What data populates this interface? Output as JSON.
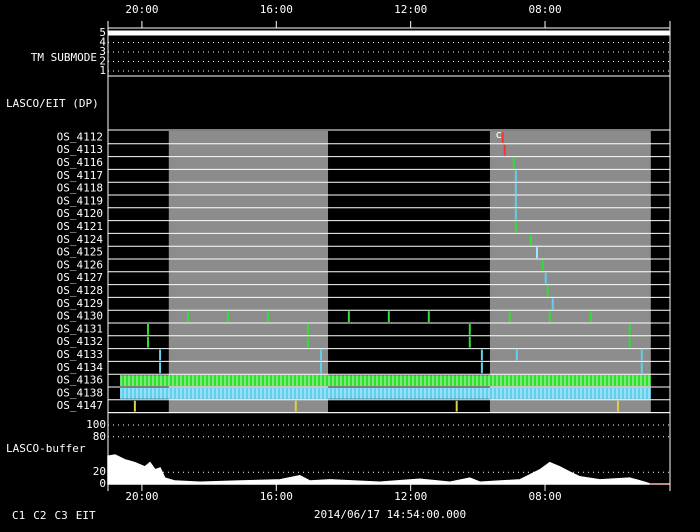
{
  "chart_data": {
    "type": "timeline",
    "xlim": [
      21.01,
      4.28
    ],
    "xticks": [
      {
        "value": 20,
        "label": "20:00"
      },
      {
        "value": 16,
        "label": "16:00"
      },
      {
        "value": 12,
        "label": "12:00"
      },
      {
        "value": 8,
        "label": "08:00"
      }
    ],
    "shaded": [
      [
        19.2,
        14.46
      ],
      [
        9.64,
        4.85
      ]
    ],
    "tm_submode": {
      "label": "TM SUBMODE",
      "ylim": [
        1,
        5
      ],
      "yticks": [
        1,
        2,
        3,
        4,
        5
      ],
      "x": [
        21.01,
        4.28
      ],
      "values": [
        5,
        5
      ],
      "color": "#ffffff"
    },
    "lasco_eit_label": "LASCO/EIT (DP)",
    "annotation": {
      "text": "c",
      "row": 0,
      "x": 9.3
    },
    "rows": [
      {
        "name": "OS_4112",
        "events": [
          {
            "x": 9.26,
            "color": "#ff3030"
          }
        ]
      },
      {
        "name": "OS_4113",
        "events": [
          {
            "x": 9.2,
            "color": "#ff3030"
          }
        ]
      },
      {
        "name": "OS_4116",
        "events": [
          {
            "x": 8.93,
            "color": "#30e030"
          }
        ]
      },
      {
        "name": "OS_4117",
        "events": [
          {
            "x": 8.87,
            "color": "#60d0f0"
          }
        ]
      },
      {
        "name": "OS_4118",
        "events": [
          {
            "x": 8.87,
            "color": "#60d0f0"
          }
        ]
      },
      {
        "name": "OS_4119",
        "events": [
          {
            "x": 8.87,
            "color": "#60d0f0"
          }
        ]
      },
      {
        "name": "OS_4120",
        "events": [
          {
            "x": 8.87,
            "color": "#60d0f0"
          }
        ]
      },
      {
        "name": "OS_4121",
        "events": [
          {
            "x": 8.87,
            "color": "#30e030"
          }
        ]
      },
      {
        "name": "OS_4124",
        "events": [
          {
            "x": 8.42,
            "color": "#30e030"
          }
        ]
      },
      {
        "name": "OS_4125",
        "events": [
          {
            "x": 8.24,
            "color": "#a0e8ff"
          }
        ]
      },
      {
        "name": "OS_4126",
        "events": [
          {
            "x": 8.07,
            "color": "#30e030"
          }
        ]
      },
      {
        "name": "OS_4127",
        "events": [
          {
            "x": 7.98,
            "color": "#60d0f0"
          }
        ]
      },
      {
        "name": "OS_4128",
        "events": [
          {
            "x": 7.92,
            "color": "#30e030"
          }
        ]
      },
      {
        "name": "OS_4129",
        "events": [
          {
            "x": 7.77,
            "color": "#60d0f0"
          }
        ]
      },
      {
        "name": "OS_4130",
        "events": [
          {
            "x": 18.63,
            "color": "#30e030"
          },
          {
            "x": 17.44,
            "color": "#30e030"
          },
          {
            "x": 16.25,
            "color": "#30e030"
          },
          {
            "x": 13.84,
            "color": "#30e030"
          },
          {
            "x": 12.65,
            "color": "#30e030"
          },
          {
            "x": 11.46,
            "color": "#30e030"
          },
          {
            "x": 9.05,
            "color": "#30e030"
          },
          {
            "x": 7.86,
            "color": "#30e030"
          },
          {
            "x": 6.64,
            "color": "#30e030"
          }
        ]
      },
      {
        "name": "OS_4131",
        "events": [
          {
            "x": 19.82,
            "color": "#30e030"
          },
          {
            "x": 15.06,
            "color": "#30e030"
          },
          {
            "x": 10.24,
            "color": "#30e030"
          },
          {
            "x": 5.48,
            "color": "#30e030"
          }
        ]
      },
      {
        "name": "OS_4132",
        "events": [
          {
            "x": 19.82,
            "color": "#30e030"
          },
          {
            "x": 15.06,
            "color": "#30e030"
          },
          {
            "x": 10.24,
            "color": "#30e030"
          },
          {
            "x": 5.48,
            "color": "#30e030"
          }
        ]
      },
      {
        "name": "OS_4133",
        "events": [
          {
            "x": 19.46,
            "color": "#60d0f0"
          },
          {
            "x": 14.67,
            "color": "#60d0f0"
          },
          {
            "x": 9.88,
            "color": "#60d0f0"
          },
          {
            "x": 8.84,
            "color": "#60d0f0"
          },
          {
            "x": 5.12,
            "color": "#60d0f0"
          }
        ]
      },
      {
        "name": "OS_4134",
        "events": [
          {
            "x": 19.46,
            "color": "#60d0f0"
          },
          {
            "x": 14.67,
            "color": "#60d0f0"
          },
          {
            "x": 9.88,
            "color": "#60d0f0"
          },
          {
            "x": 5.12,
            "color": "#60d0f0"
          }
        ]
      },
      {
        "name": "OS_4136",
        "bands": [
          {
            "start": 20.65,
            "end": 4.85,
            "color": "#30e030"
          }
        ]
      },
      {
        "name": "OS_4138",
        "bands": [
          {
            "start": 20.65,
            "end": 4.85,
            "color": "#60d0f0"
          }
        ]
      },
      {
        "name": "OS_4147",
        "events": [
          {
            "x": 20.21,
            "color": "#e0d040"
          },
          {
            "x": 15.42,
            "color": "#e0d040"
          },
          {
            "x": 10.63,
            "color": "#e0d040"
          },
          {
            "x": 5.83,
            "color": "#e0d040"
          }
        ]
      }
    ],
    "buffer": {
      "label": "LASCO-buffer",
      "ylim": [
        0,
        100
      ],
      "yticks": [
        0,
        20,
        80,
        100
      ],
      "series": [
        {
          "color": "#ffffff",
          "x": [
            21.01,
            20.8,
            20.51,
            20.21,
            19.91,
            19.76,
            19.61,
            19.46,
            19.32,
            19.02,
            18.27,
            17.08,
            15.89,
            15.3,
            15.0,
            14.4,
            12.92,
            11.73,
            10.83,
            10.24,
            9.94,
            8.75,
            8.15,
            7.86,
            7.56,
            7.26,
            6.96,
            6.37,
            5.48,
            5.04,
            4.88
          ],
          "values": [
            47,
            49,
            41,
            36,
            29,
            36,
            24,
            27,
            10,
            5,
            3,
            5,
            7,
            14,
            5,
            7,
            3,
            8,
            3,
            10,
            3,
            7,
            24,
            36,
            29,
            20,
            12,
            7,
            10,
            3,
            0
          ]
        },
        {
          "color": "#ff2020",
          "x": [
            4.85,
            4.28
          ],
          "values": [
            0,
            0
          ]
        }
      ]
    },
    "legend": [
      {
        "name": "C1",
        "color": "#ff3030"
      },
      {
        "name": "C2",
        "color": "#30e030"
      },
      {
        "name": "C3",
        "color": "#60d0f0"
      },
      {
        "name": "EIT",
        "color": "#ffffff"
      }
    ],
    "timestamp": "2014/06/17 14:54:00.000"
  }
}
